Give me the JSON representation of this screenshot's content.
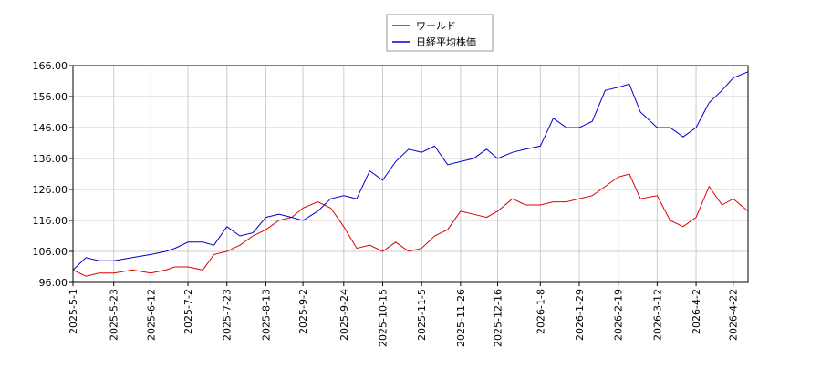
{
  "chart_data": {
    "type": "line",
    "x": [
      "2025-5-1",
      "2025-5-8",
      "2025-5-15",
      "2025-5-23",
      "2025-6-2",
      "2025-6-12",
      "2025-6-20",
      "2025-6-25",
      "2025-7-2",
      "2025-7-10",
      "2025-7-16",
      "2025-7-23",
      "2025-7-30",
      "2025-8-6",
      "2025-8-13",
      "2025-8-20",
      "2025-8-27",
      "2025-9-2",
      "2025-9-10",
      "2025-9-17",
      "2025-9-24",
      "2025-10-1",
      "2025-10-8",
      "2025-10-15",
      "2025-10-22",
      "2025-10-29",
      "2025-11-5",
      "2025-11-12",
      "2025-11-19",
      "2025-11-26",
      "2025-12-3",
      "2025-12-10",
      "2025-12-16",
      "2025-12-24",
      "2025-12-31",
      "2026-1-8",
      "2026-1-15",
      "2026-1-22",
      "2026-1-29",
      "2026-2-5",
      "2026-2-12",
      "2026-2-19",
      "2026-2-25",
      "2026-3-3",
      "2026-3-12",
      "2026-3-19",
      "2026-3-26",
      "2026-4-2",
      "2026-4-9",
      "2026-4-16",
      "2026-4-22",
      "2026-4-30"
    ],
    "series": [
      {
        "name": "ワールド",
        "color": "#dd0000",
        "values": [
          100,
          98,
          99,
          99,
          100,
          99,
          100,
          101,
          101,
          100,
          105,
          106,
          108,
          111,
          113,
          116,
          117,
          120,
          122,
          120,
          114,
          107,
          108,
          106,
          109,
          106,
          107,
          111,
          113,
          119,
          118,
          117,
          119,
          123,
          121,
          121,
          122,
          122,
          123,
          124,
          127,
          130,
          131,
          123,
          124,
          116,
          114,
          117,
          127,
          121,
          123,
          119
        ]
      },
      {
        "name": "日経平均株価",
        "color": "#0000cc",
        "values": [
          100,
          104,
          103,
          103,
          104,
          105,
          106,
          107,
          109,
          109,
          108,
          114,
          111,
          112,
          117,
          118,
          117,
          116,
          119,
          123,
          124,
          123,
          132,
          129,
          135,
          139,
          138,
          140,
          134,
          135,
          136,
          139,
          136,
          138,
          139,
          140,
          149,
          146,
          146,
          148,
          158,
          159,
          160,
          151,
          146,
          146,
          143,
          146,
          154,
          158,
          162,
          164
        ]
      }
    ],
    "xlim": [
      "2025-5-1",
      "2026-4-30"
    ],
    "xticks": [
      "2025-5-1",
      "2025-5-23",
      "2025-6-12",
      "2025-7-2",
      "2025-7-23",
      "2025-8-13",
      "2025-9-2",
      "2025-9-24",
      "2025-10-15",
      "2025-11-5",
      "2025-11-26",
      "2025-12-16",
      "2026-1-8",
      "2026-1-29",
      "2026-2-19",
      "2026-3-12",
      "2026-4-2",
      "2026-4-22"
    ],
    "ylim": [
      96,
      166
    ],
    "yticks": [
      {
        "value": 96,
        "label": "96.00"
      },
      {
        "value": 106,
        "label": "106.00"
      },
      {
        "value": 116,
        "label": "116.00"
      },
      {
        "value": 126,
        "label": "126.00"
      },
      {
        "value": 136,
        "label": "136.00"
      },
      {
        "value": 146,
        "label": "146.00"
      },
      {
        "value": 156,
        "label": "156.00"
      },
      {
        "value": 166,
        "label": "166.00"
      }
    ],
    "grid": true
  }
}
